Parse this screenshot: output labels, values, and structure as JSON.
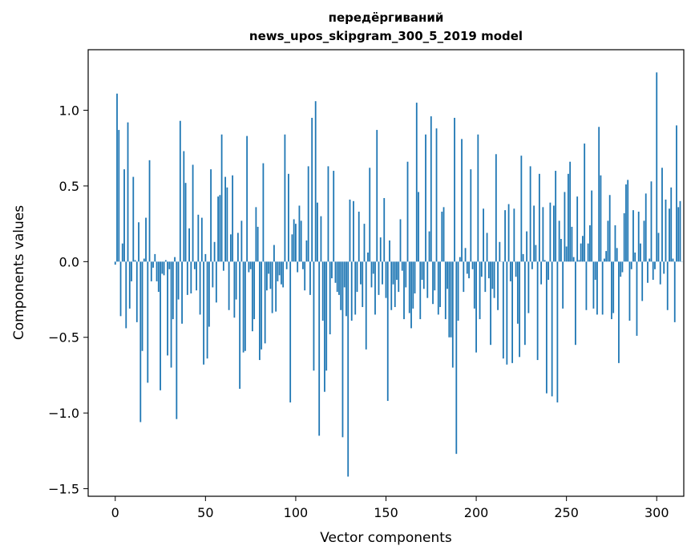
{
  "chart_data": {
    "type": "bar",
    "title_line1": "передёргиваний",
    "title_line2": "news_upos_skipgram_300_5_2019 model",
    "xlabel": "Vector components",
    "ylabel": "Components values",
    "xlim": [
      -15,
      315
    ],
    "ylim": [
      -1.55,
      1.4
    ],
    "x_ticks": [
      0,
      50,
      100,
      150,
      200,
      250,
      300
    ],
    "x_tick_labels": [
      "0",
      "50",
      "100",
      "150",
      "200",
      "250",
      "300"
    ],
    "y_ticks": [
      -1.5,
      -1.0,
      -0.5,
      0.0,
      0.5,
      1.0
    ],
    "y_tick_labels": [
      "−1.5",
      "−1.0",
      "−0.5",
      "0.0",
      "0.5",
      "1.0"
    ],
    "bar_color": "#1f77b4",
    "values": [
      -0.02,
      1.11,
      0.87,
      -0.36,
      0.12,
      0.61,
      -0.44,
      0.92,
      -0.31,
      -0.13,
      0.56,
      0.01,
      -0.4,
      0.26,
      -1.06,
      -0.59,
      0.02,
      0.29,
      -0.8,
      0.67,
      -0.13,
      -0.04,
      0.05,
      -0.13,
      -0.2,
      -0.85,
      -0.08,
      -0.09,
      0.01,
      -0.62,
      -0.05,
      -0.7,
      -0.38,
      0.03,
      -1.04,
      -0.25,
      0.93,
      -0.41,
      0.73,
      0.52,
      -0.22,
      0.22,
      -0.21,
      0.64,
      -0.05,
      -0.19,
      0.31,
      -0.35,
      0.29,
      -0.68,
      0.05,
      -0.64,
      -0.43,
      0.61,
      -0.17,
      0.13,
      -0.27,
      0.43,
      0.44,
      0.84,
      -0.06,
      0.56,
      0.49,
      -0.32,
      0.18,
      0.57,
      -0.37,
      -0.25,
      0.19,
      -0.84,
      0.27,
      -0.6,
      -0.59,
      0.83,
      -0.07,
      -0.05,
      -0.46,
      -0.38,
      0.36,
      0.23,
      -0.65,
      -0.58,
      0.65,
      -0.54,
      -0.19,
      -0.08,
      -0.18,
      -0.34,
      0.11,
      -0.33,
      -0.13,
      -0.09,
      -0.15,
      -0.17,
      0.84,
      -0.05,
      0.58,
      -0.93,
      0.18,
      0.28,
      0.25,
      -0.07,
      0.37,
      0.27,
      -0.05,
      -0.19,
      0.14,
      0.63,
      -0.22,
      0.95,
      -0.72,
      1.06,
      0.39,
      -1.15,
      0.3,
      -0.39,
      -0.86,
      -0.72,
      0.63,
      -0.48,
      -0.11,
      0.6,
      -0.14,
      -0.2,
      -0.22,
      -0.32,
      -1.16,
      -0.17,
      -0.36,
      -1.42,
      0.41,
      -0.39,
      0.4,
      -0.35,
      -0.2,
      0.33,
      -0.15,
      -0.3,
      0.25,
      -0.58,
      0.06,
      0.62,
      -0.17,
      -0.08,
      -0.35,
      0.87,
      -0.22,
      0.16,
      -0.15,
      0.42,
      -0.24,
      -0.92,
      0.14,
      -0.32,
      -0.15,
      -0.3,
      -0.12,
      -0.2,
      0.28,
      -0.06,
      -0.38,
      -0.17,
      0.66,
      -0.34,
      -0.44,
      -0.31,
      -0.21,
      1.05,
      0.46,
      -0.38,
      -0.12,
      -0.18,
      0.84,
      -0.24,
      0.2,
      0.96,
      -0.28,
      -0.19,
      0.88,
      -0.35,
      -0.3,
      0.33,
      0.36,
      -0.38,
      -0.18,
      -0.5,
      -0.5,
      -0.7,
      0.95,
      -1.27,
      -0.39,
      0.03,
      0.81,
      -0.2,
      0.09,
      -0.08,
      -0.11,
      0.61,
      -0.05,
      -0.31,
      -0.6,
      0.84,
      -0.38,
      -0.1,
      0.35,
      -0.2,
      0.19,
      -0.11,
      -0.55,
      -0.18,
      -0.24,
      0.71,
      -0.32,
      0.13,
      0.0,
      -0.64,
      0.34,
      -0.68,
      0.38,
      -0.13,
      -0.67,
      0.35,
      -0.1,
      -0.41,
      -0.63,
      0.7,
      0.05,
      -0.55,
      0.2,
      -0.34,
      0.63,
      -0.05,
      0.37,
      0.11,
      -0.65,
      0.58,
      -0.15,
      0.36,
      0.01,
      -0.87,
      -0.12,
      0.39,
      -0.89,
      0.37,
      0.6,
      -0.93,
      0.27,
      0.15,
      -0.31,
      0.46,
      0.1,
      0.58,
      0.66,
      0.23,
      0.03,
      -0.55,
      0.43,
      0.01,
      0.12,
      0.17,
      0.78,
      -0.32,
      0.12,
      0.24,
      0.47,
      -0.31,
      -0.12,
      -0.35,
      0.89,
      0.57,
      -0.35,
      0.02,
      0.07,
      0.27,
      0.44,
      -0.38,
      -0.34,
      0.24,
      0.09,
      -0.67,
      -0.1,
      -0.07,
      0.32,
      0.51,
      0.54,
      -0.39,
      -0.05,
      0.34,
      0.06,
      -0.49,
      0.33,
      0.12,
      -0.26,
      0.27,
      0.45,
      -0.14,
      0.02,
      0.53,
      -0.12,
      -0.05,
      1.25,
      0.19,
      -0.15,
      0.62,
      -0.08,
      0.41,
      -0.32,
      0.35,
      0.49,
      0.02,
      -0.4,
      0.9,
      0.36,
      0.4,
      0.0
    ]
  }
}
